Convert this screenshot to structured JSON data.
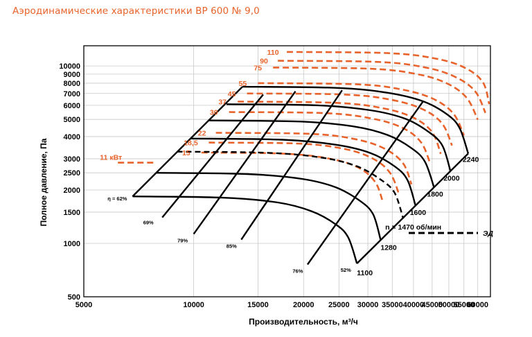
{
  "title": "Аэродинамические характеристики ВР 600 № 9,0",
  "colors": {
    "title": "#e8632b",
    "power": "#e8632b",
    "speed": "#000000",
    "grid": "#c8c8c8"
  },
  "chart_data": {
    "type": "line",
    "title": "Аэродинамические характеристики ВР 600 № 9,0",
    "xlabel": "Производительность, м³/ч",
    "ylabel": "Полное давление, Па",
    "x_scale": "log",
    "y_scale": "log",
    "xlim": [
      5000,
      65000
    ],
    "ylim": [
      500,
      13000
    ],
    "grid": true,
    "x_ticks": [
      5000,
      10000,
      15000,
      20000,
      25000,
      30000,
      35000,
      40000,
      45000,
      50000,
      55000,
      60000
    ],
    "y_ticks": [
      500,
      1000,
      1500,
      2000,
      2500,
      3000,
      4000,
      5000,
      6000,
      7000,
      8000,
      9000,
      10000
    ],
    "speed_curves": [
      {
        "label": "1100",
        "points": [
          [
            6800,
            1840
          ],
          [
            12000,
            1810
          ],
          [
            17000,
            1700
          ],
          [
            21000,
            1520
          ],
          [
            24500,
            1280
          ],
          [
            26500,
            1080
          ],
          [
            28000,
            770
          ]
        ]
      },
      {
        "label": "1280",
        "points": [
          [
            7900,
            2500
          ],
          [
            14000,
            2460
          ],
          [
            19800,
            2310
          ],
          [
            24500,
            2070
          ],
          [
            28500,
            1740
          ],
          [
            31000,
            1460
          ],
          [
            32500,
            1050
          ]
        ]
      },
      {
        "label": "n = 1470 об/мин",
        "points": [
          [
            9000,
            3290
          ],
          [
            16000,
            3240
          ],
          [
            22500,
            3040
          ],
          [
            28000,
            2720
          ],
          [
            32500,
            2290
          ],
          [
            35500,
            1930
          ],
          [
            37500,
            1380
          ]
        ]
      },
      {
        "label": "1600",
        "points": [
          [
            9800,
            3900
          ],
          [
            17500,
            3840
          ],
          [
            24500,
            3600
          ],
          [
            30500,
            3230
          ],
          [
            35500,
            2720
          ],
          [
            38500,
            2280
          ],
          [
            40500,
            1640
          ]
        ]
      },
      {
        "label": "1800",
        "points": [
          [
            11000,
            4930
          ],
          [
            19700,
            4860
          ],
          [
            27500,
            4560
          ],
          [
            34000,
            4080
          ],
          [
            39500,
            3440
          ],
          [
            43000,
            2890
          ],
          [
            45500,
            2080
          ]
        ]
      },
      {
        "label": "2000",
        "points": [
          [
            12300,
            6090
          ],
          [
            21900,
            6000
          ],
          [
            30500,
            5630
          ],
          [
            38000,
            5040
          ],
          [
            44000,
            4250
          ],
          [
            48000,
            3560
          ],
          [
            50500,
            2560
          ]
        ]
      },
      {
        "label": "2240",
        "points": [
          [
            13600,
            7640
          ],
          [
            24500,
            7530
          ],
          [
            34000,
            7060
          ],
          [
            42500,
            6320
          ],
          [
            49500,
            5330
          ],
          [
            53500,
            4470
          ],
          [
            56500,
            3210
          ]
        ]
      }
    ],
    "efficiency_lines": [
      {
        "label": "η = 62%",
        "points": [
          [
            6800,
            1840
          ],
          [
            13600,
            7640
          ]
        ]
      },
      {
        "label": "69%",
        "points": [
          [
            8200,
            1400
          ],
          [
            15500,
            6900
          ]
        ]
      },
      {
        "label": "79%",
        "points": [
          [
            10000,
            1130
          ],
          [
            19000,
            7200
          ]
        ]
      },
      {
        "label": "85%",
        "points": [
          [
            13500,
            1050
          ],
          [
            25500,
            7300
          ]
        ]
      },
      {
        "label": "76%",
        "points": [
          [
            20500,
            760
          ],
          [
            42500,
            6320
          ]
        ]
      },
      {
        "label": "52%",
        "points": [
          [
            28000,
            770
          ],
          [
            56500,
            3210
          ]
        ]
      }
    ],
    "power_labels": [
      "11 кВт",
      "15",
      "18,5",
      "22",
      "30",
      "37",
      "45",
      "55",
      "75",
      "90",
      "110"
    ],
    "power_curves": [
      {
        "label": "11 кВт",
        "points": [
          [
            6200,
            2850
          ],
          [
            7900,
            2850
          ]
        ]
      },
      {
        "label": "15",
        "points": [
          [
            10500,
            3250
          ],
          [
            18000,
            3200
          ],
          [
            24000,
            2980
          ],
          [
            28500,
            2650
          ],
          [
            31500,
            2200
          ],
          [
            33000,
            1700
          ]
        ]
      },
      {
        "label": "18,5",
        "points": [
          [
            11000,
            3700
          ],
          [
            19500,
            3650
          ],
          [
            26000,
            3400
          ],
          [
            31000,
            3000
          ],
          [
            34500,
            2500
          ],
          [
            36500,
            1900
          ]
        ]
      },
      {
        "label": "22",
        "points": [
          [
            11500,
            4200
          ],
          [
            21000,
            4140
          ],
          [
            28000,
            3850
          ],
          [
            33500,
            3400
          ],
          [
            37500,
            2820
          ],
          [
            39500,
            2150
          ]
        ]
      },
      {
        "label": "30",
        "points": [
          [
            12500,
            5500
          ],
          [
            23000,
            5420
          ],
          [
            31000,
            5040
          ],
          [
            37500,
            4460
          ],
          [
            42000,
            3700
          ],
          [
            44500,
            2800
          ]
        ]
      },
      {
        "label": "37",
        "points": [
          [
            13200,
            6300
          ],
          [
            24500,
            6200
          ],
          [
            33000,
            5780
          ],
          [
            40000,
            5110
          ],
          [
            45000,
            4240
          ],
          [
            47500,
            3200
          ]
        ]
      },
      {
        "label": "45",
        "points": [
          [
            14000,
            7000
          ],
          [
            26000,
            6900
          ],
          [
            35000,
            6430
          ],
          [
            42500,
            5690
          ],
          [
            48000,
            4720
          ],
          [
            51000,
            3560
          ]
        ]
      },
      {
        "label": "55",
        "points": [
          [
            15000,
            8000
          ],
          [
            28000,
            7880
          ],
          [
            37500,
            7340
          ],
          [
            45500,
            6500
          ],
          [
            51500,
            5380
          ],
          [
            55000,
            4060
          ]
        ]
      },
      {
        "label": "75",
        "points": [
          [
            16500,
            9800
          ],
          [
            30500,
            9650
          ],
          [
            41000,
            8990
          ],
          [
            49500,
            7960
          ],
          [
            56000,
            6600
          ],
          [
            60000,
            4980
          ]
        ]
      },
      {
        "label": "90",
        "points": [
          [
            17000,
            10700
          ],
          [
            32000,
            10540
          ],
          [
            43000,
            9820
          ],
          [
            52000,
            8690
          ],
          [
            59000,
            7210
          ],
          [
            63000,
            5440
          ]
        ]
      },
      {
        "label": "110",
        "points": [
          [
            18000,
            12000
          ],
          [
            34000,
            11820
          ],
          [
            46000,
            11010
          ],
          [
            55500,
            9740
          ],
          [
            62000,
            8080
          ],
          [
            64500,
            6100
          ]
        ]
      }
    ],
    "drive_label": "ЭД"
  }
}
